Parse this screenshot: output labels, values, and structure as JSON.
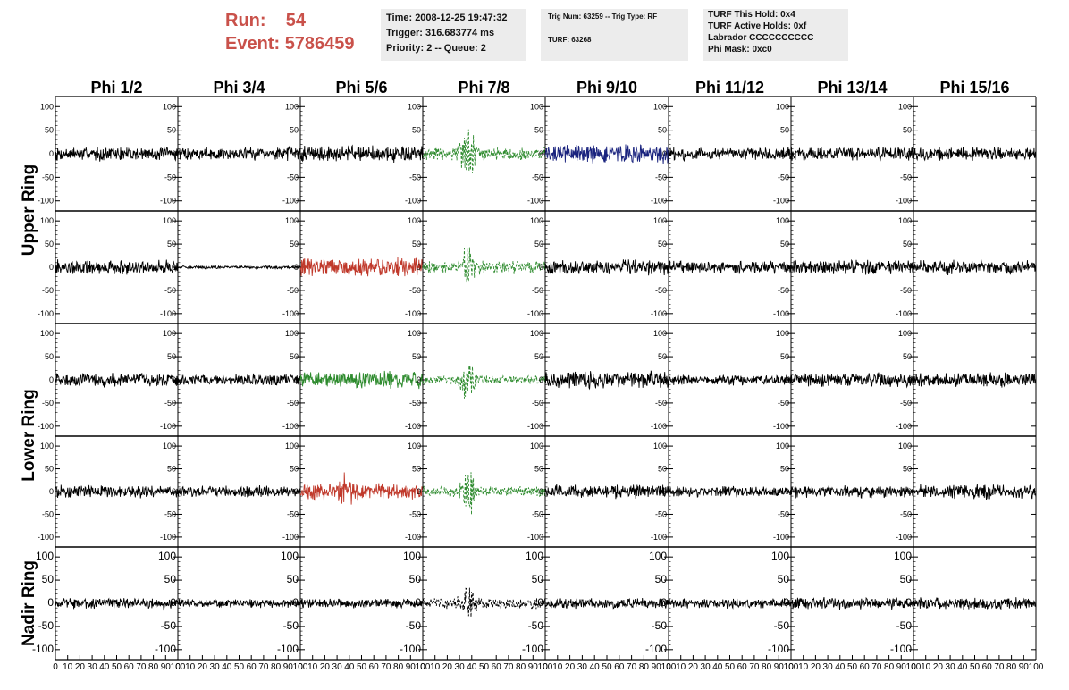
{
  "header": {
    "run_label": "Run:",
    "run_value": "54",
    "event_label": "Event:",
    "event_value": "5786459",
    "info_box_1": [
      "Time: 2008-12-25 19:47:32",
      "Trigger: 316.683774 ms",
      "Priority: 2 -- Queue: 2"
    ],
    "info_box_2": [
      "Trig Num: 63259 -- Trig Type: RF",
      "TURF: 63268"
    ],
    "info_box_3": [
      "TURF This Hold: 0x4",
      "TURF Active Holds: 0xf",
      "Labrador CCCCCCCCCC",
      "Phi Mask: 0xc0"
    ]
  },
  "columns": [
    "Phi 1/2",
    "Phi 3/4",
    "Phi 5/6",
    "Phi 7/8",
    "Phi 9/10",
    "Phi 11/12",
    "Phi 13/14",
    "Phi 15/16"
  ],
  "ring_labels": [
    {
      "label": "Upper Ring",
      "spans_rows": [
        0,
        1
      ]
    },
    {
      "label": "Lower Ring",
      "spans_rows": [
        2,
        3
      ]
    },
    {
      "label": "Nadir Ring",
      "spans_rows": [
        4
      ]
    }
  ],
  "colors": {
    "black": "#000000",
    "green": "#2e8b2e",
    "red": "#c0392b",
    "blue": "#1a237e",
    "header_text": "#c9514a",
    "info_box_bg": "#ececec"
  },
  "chart_data": {
    "type": "line",
    "title": "",
    "xlabel": "",
    "ylabel": "",
    "xlim": [
      0,
      100
    ],
    "ylim": [
      -110,
      110
    ],
    "y_ticks": [
      "100",
      "50",
      "0",
      "-50",
      "-100"
    ],
    "x_tick_labels": [
      "0",
      "10",
      "20",
      "30",
      "40",
      "50",
      "60",
      "70",
      "80",
      "90",
      "100"
    ],
    "panels": [
      [
        {
          "color": "black",
          "amp": 13,
          "burst": 0
        },
        {
          "color": "black",
          "amp": 12,
          "burst": 0
        },
        {
          "color": "black",
          "amp": 15,
          "burst": 0
        },
        {
          "color": "green",
          "amp": 12,
          "burst": 45,
          "dashed": true
        },
        {
          "color": "blue",
          "amp": 18,
          "burst": 0
        },
        {
          "color": "black",
          "amp": 12,
          "burst": 0
        },
        {
          "color": "black",
          "amp": 12,
          "burst": 0
        },
        {
          "color": "black",
          "amp": 12,
          "burst": 0
        }
      ],
      [
        {
          "color": "black",
          "amp": 14,
          "burst": 0
        },
        {
          "color": "black",
          "amp": 3,
          "burst": 0
        },
        {
          "color": "red",
          "amp": 18,
          "burst": 0
        },
        {
          "color": "green",
          "amp": 12,
          "burst": 35,
          "dashed": true
        },
        {
          "color": "black",
          "amp": 14,
          "burst": 0
        },
        {
          "color": "black",
          "amp": 12,
          "burst": 0
        },
        {
          "color": "black",
          "amp": 14,
          "burst": 0
        },
        {
          "color": "black",
          "amp": 14,
          "burst": 0
        }
      ],
      [
        {
          "color": "black",
          "amp": 13,
          "burst": 0
        },
        {
          "color": "black",
          "amp": 11,
          "burst": 0
        },
        {
          "color": "green",
          "amp": 16,
          "burst": 0
        },
        {
          "color": "green",
          "amp": 8,
          "burst": 45,
          "dashed": true
        },
        {
          "color": "black",
          "amp": 17,
          "burst": 0
        },
        {
          "color": "black",
          "amp": 10,
          "burst": 0
        },
        {
          "color": "black",
          "amp": 13,
          "burst": 0
        },
        {
          "color": "black",
          "amp": 13,
          "burst": 0
        }
      ],
      [
        {
          "color": "black",
          "amp": 12,
          "burst": 0
        },
        {
          "color": "black",
          "amp": 11,
          "burst": 0
        },
        {
          "color": "red",
          "amp": 16,
          "burst": 30
        },
        {
          "color": "green",
          "amp": 10,
          "burst": 40,
          "dashed": true
        },
        {
          "color": "black",
          "amp": 13,
          "burst": 0
        },
        {
          "color": "black",
          "amp": 10,
          "burst": 0
        },
        {
          "color": "black",
          "amp": 12,
          "burst": 0
        },
        {
          "color": "black",
          "amp": 14,
          "burst": 0
        }
      ],
      [
        {
          "color": "black",
          "amp": 10,
          "burst": 0
        },
        {
          "color": "black",
          "amp": 8,
          "burst": 0
        },
        {
          "color": "black",
          "amp": 9,
          "burst": 0
        },
        {
          "color": "black",
          "amp": 10,
          "burst": 30,
          "dashed": true
        },
        {
          "color": "black",
          "amp": 10,
          "burst": 0
        },
        {
          "color": "black",
          "amp": 9,
          "burst": 0
        },
        {
          "color": "black",
          "amp": 11,
          "burst": 0
        },
        {
          "color": "black",
          "amp": 11,
          "burst": 0
        }
      ]
    ]
  }
}
